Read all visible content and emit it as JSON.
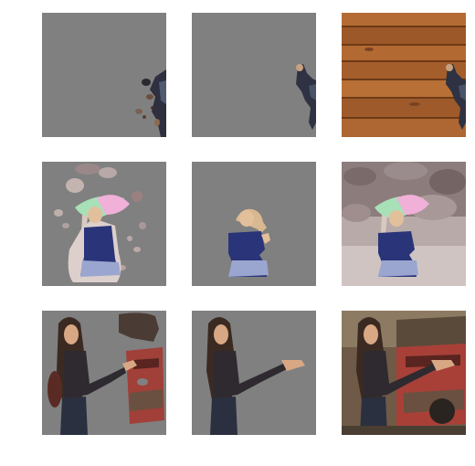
{
  "grid": {
    "rows": 3,
    "columns": 3,
    "background_gray": "#808080",
    "tiles": [
      {
        "row": 1,
        "col": 1,
        "content": "masked-skateboarder-noisy"
      },
      {
        "row": 1,
        "col": 2,
        "content": "masked-skateboarder-clean"
      },
      {
        "row": 1,
        "col": 3,
        "content": "skateboarder-on-wood-floor"
      },
      {
        "row": 2,
        "col": 1,
        "content": "masked-girl-with-umbrella-noisy"
      },
      {
        "row": 2,
        "col": 2,
        "content": "masked-girl-with-umbrella-clean"
      },
      {
        "row": 2,
        "col": 3,
        "content": "girl-with-umbrella-on-rocks"
      },
      {
        "row": 3,
        "col": 1,
        "content": "masked-woman-by-truck-noisy"
      },
      {
        "row": 3,
        "col": 2,
        "content": "masked-woman-by-truck-clean"
      },
      {
        "row": 3,
        "col": 3,
        "content": "woman-by-red-truck"
      }
    ]
  }
}
